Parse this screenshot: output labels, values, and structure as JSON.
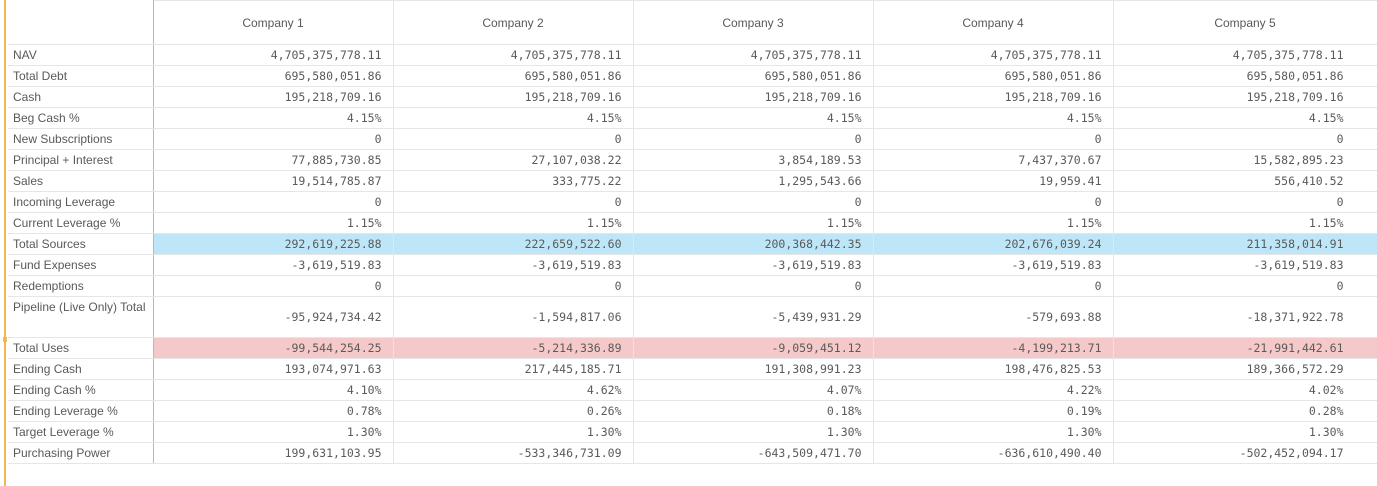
{
  "columns": [
    "Company 1",
    "Company 2",
    "Company 3",
    "Company 4",
    "Company 5"
  ],
  "rows": [
    {
      "label": "NAV",
      "values": [
        "4,705,375,778.11",
        "4,705,375,778.11",
        "4,705,375,778.11",
        "4,705,375,778.11",
        "4,705,375,778.11"
      ]
    },
    {
      "label": "Total Debt",
      "values": [
        "695,580,051.86",
        "695,580,051.86",
        "695,580,051.86",
        "695,580,051.86",
        "695,580,051.86"
      ]
    },
    {
      "label": "Cash",
      "values": [
        "195,218,709.16",
        "195,218,709.16",
        "195,218,709.16",
        "195,218,709.16",
        "195,218,709.16"
      ]
    },
    {
      "label": "Beg Cash %",
      "values": [
        "4.15%",
        "4.15%",
        "4.15%",
        "4.15%",
        "4.15%"
      ]
    },
    {
      "label": "New Subscriptions",
      "values": [
        "0",
        "0",
        "0",
        "0",
        "0"
      ]
    },
    {
      "label": "Principal + Interest",
      "values": [
        "77,885,730.85",
        "27,107,038.22",
        "3,854,189.53",
        "7,437,370.67",
        "15,582,895.23"
      ]
    },
    {
      "label": "Sales",
      "values": [
        "19,514,785.87",
        "333,775.22",
        "1,295,543.66",
        "19,959.41",
        "556,410.52"
      ]
    },
    {
      "label": "Incoming Leverage",
      "values": [
        "0",
        "0",
        "0",
        "0",
        "0"
      ]
    },
    {
      "label": "Current Leverage %",
      "values": [
        "1.15%",
        "1.15%",
        "1.15%",
        "1.15%",
        "1.15%"
      ]
    },
    {
      "label": "Total Sources",
      "highlight": "#bde7f8",
      "values": [
        "292,619,225.88",
        "222,659,522.60",
        "200,368,442.35",
        "202,676,039.24",
        "211,358,014.91"
      ]
    },
    {
      "label": "Fund Expenses",
      "values": [
        "-3,619,519.83",
        "-3,619,519.83",
        "-3,619,519.83",
        "-3,619,519.83",
        "-3,619,519.83"
      ]
    },
    {
      "label": "Redemptions",
      "values": [
        "0",
        "0",
        "0",
        "0",
        "0"
      ]
    },
    {
      "label": "Pipeline (Live Only) Total",
      "values": [
        "-95,924,734.42",
        "-1,594,817.06",
        "-5,439,931.29",
        "-579,693.88",
        "-18,371,922.78"
      ]
    },
    {
      "label": "Total Uses",
      "highlight": "#f5c9c9",
      "values": [
        "-99,544,254.25",
        "-5,214,336.89",
        "-9,059,451.12",
        "-4,199,213.71",
        "-21,991,442.61"
      ]
    },
    {
      "label": "Ending Cash",
      "values": [
        "193,074,971.63",
        "217,445,185.71",
        "191,308,991.23",
        "198,476,825.53",
        "189,366,572.29"
      ]
    },
    {
      "label": "Ending Cash %",
      "values": [
        "4.10%",
        "4.62%",
        "4.07%",
        "4.22%",
        "4.02%"
      ]
    },
    {
      "label": "Ending Leverage %",
      "values": [
        "0.78%",
        "0.26%",
        "0.18%",
        "0.19%",
        "0.28%"
      ]
    },
    {
      "label": "Target Leverage %",
      "values": [
        "1.30%",
        "1.30%",
        "1.30%",
        "1.30%",
        "1.30%"
      ]
    },
    {
      "label": "Purchasing Power",
      "values": [
        "199,631,103.95",
        "-533,346,731.09",
        "-643,509,471.70",
        "-636,610,490.40",
        "-502,452,094.17"
      ]
    }
  ]
}
